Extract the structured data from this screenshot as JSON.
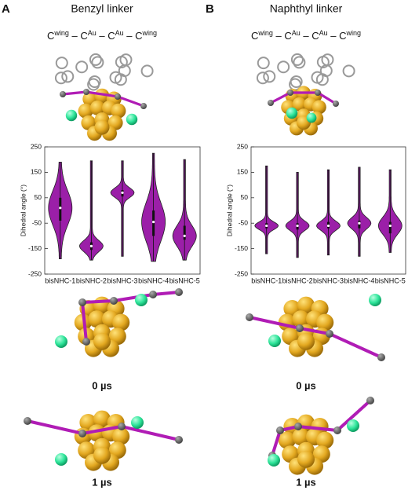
{
  "panels": [
    {
      "label": "A",
      "title": "Benzyl linker",
      "formula": [
        "C",
        "wing",
        " – C",
        "Au",
        " – C",
        "Au",
        " – C",
        "wing"
      ],
      "snapshots": [
        "0 µs",
        "1 µs"
      ]
    },
    {
      "label": "B",
      "title": "Naphthyl linker",
      "formula": [
        "C",
        "wing",
        " – C",
        "Au",
        " – C",
        "Au",
        " – C",
        "wing"
      ],
      "snapshots": [
        "0 µs",
        "1 µs"
      ]
    }
  ],
  "chart_data": [
    {
      "type": "violin",
      "ylabel": "Dihedral angle (°)",
      "color": "#9b1fa8",
      "categories": [
        "bisNHC-1",
        "bisNHC-2",
        "bisNHC-3",
        "bisNHC-4",
        "bisNHC-5"
      ],
      "stats": [
        {
          "min": -190,
          "q1": -40,
          "median": 10,
          "q3": 50,
          "max": 190
        },
        {
          "min": -195,
          "q1": -155,
          "median": -140,
          "q3": -125,
          "max": 195
        },
        {
          "min": -180,
          "q1": 55,
          "median": 70,
          "q3": 80,
          "max": 195
        },
        {
          "min": -200,
          "q1": -100,
          "median": -45,
          "q3": 0,
          "max": 225
        },
        {
          "min": -195,
          "q1": -115,
          "median": -100,
          "q3": -60,
          "max": 200
        }
      ],
      "ylim": [
        -250,
        250
      ],
      "yticks": [
        -250,
        -150,
        -50,
        50,
        150,
        250
      ]
    },
    {
      "type": "violin",
      "ylabel": "Dihedral angle (°)",
      "color": "#9b1fa8",
      "categories": [
        "bisNHC-1",
        "bisNHC-2",
        "bisNHC-3",
        "bisNHC-4",
        "bisNHC-5"
      ],
      "stats": [
        {
          "min": -170,
          "q1": -70,
          "median": -60,
          "q3": -50,
          "max": 175
        },
        {
          "min": -185,
          "q1": -75,
          "median": -60,
          "q3": -50,
          "max": 150
        },
        {
          "min": -175,
          "q1": -70,
          "median": -60,
          "q3": -45,
          "max": 160
        },
        {
          "min": -180,
          "q1": -70,
          "median": -50,
          "q3": -40,
          "max": 170
        },
        {
          "min": -165,
          "q1": -90,
          "median": -60,
          "q3": -45,
          "max": 160
        }
      ],
      "ylim": [
        -250,
        250
      ],
      "yticks": [
        -250,
        -150,
        -50,
        50,
        150,
        250
      ]
    }
  ]
}
